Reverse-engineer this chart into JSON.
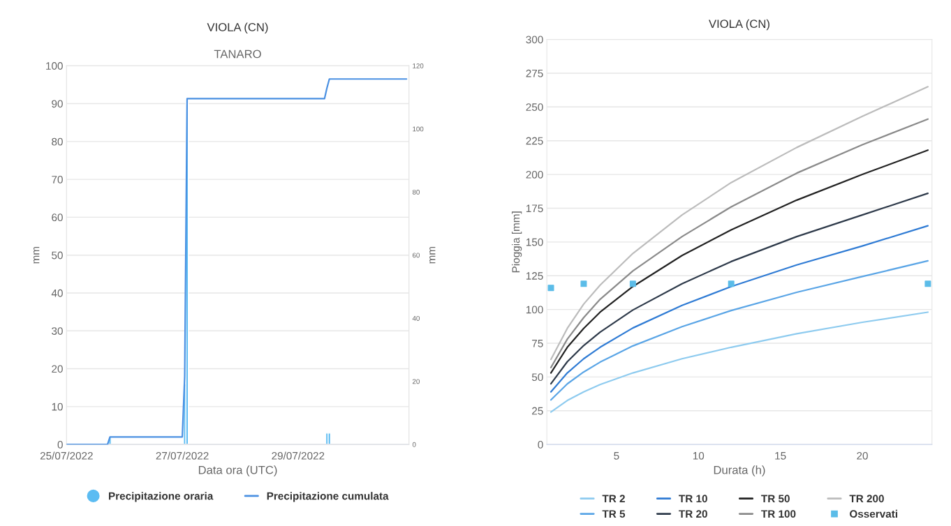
{
  "chart_data": [
    {
      "type": "bar",
      "title": "VIOLA (CN)",
      "subtitle": "TANARO",
      "xlabel": "Data ora (UTC)",
      "ylabel": "mm",
      "y2label": "mm",
      "xlim": [
        "2022-07-25T00:00",
        "2022-07-30T22:00"
      ],
      "xticks": [
        {
          "value": "2022-07-25",
          "label": "25/07/2022"
        },
        {
          "value": "2022-07-27",
          "label": "27/07/2022"
        },
        {
          "value": "2022-07-29",
          "label": "29/07/2022"
        }
      ],
      "ylim": [
        0,
        100
      ],
      "yticks": [
        0,
        10,
        20,
        30,
        40,
        50,
        60,
        70,
        80,
        90,
        100
      ],
      "y2lim": [
        0,
        120
      ],
      "y2ticks": [
        0,
        20,
        40,
        60,
        80,
        100,
        120
      ],
      "grid": "y",
      "legend": "bottom",
      "series": [
        {
          "name": "Precipitazione oraria",
          "type": "bar",
          "color": "#5cbcf2",
          "x": [
            "2022-07-25T18:00",
            "2022-07-27T01:00",
            "2022-07-27T02:00",
            "2022-07-29T12:00",
            "2022-07-29T13:00"
          ],
          "values": [
            2,
            16,
            91,
            3,
            3
          ]
        },
        {
          "name": "Precipitazione cumulata",
          "type": "line",
          "axis": "y2",
          "color": "#4a90e2",
          "x": [
            "2022-07-25T00:00",
            "2022-07-25T17:00",
            "2022-07-25T18:00",
            "2022-07-27T00:00",
            "2022-07-27T01:00",
            "2022-07-27T02:00",
            "2022-07-29T11:00",
            "2022-07-29T12:00",
            "2022-07-29T13:00",
            "2022-07-30T21:00"
          ],
          "values": [
            0,
            0,
            2.4,
            2.4,
            21.6,
            109.6,
            109.6,
            113,
            115.8,
            115.8
          ]
        }
      ]
    },
    {
      "type": "line",
      "title": "VIOLA (CN)",
      "xlabel": "Durata (h)",
      "ylabel": "Pioggia [mm]",
      "xlim": [
        0.75,
        24.25
      ],
      "xticks": [
        5,
        10,
        15,
        20
      ],
      "ylim": [
        0,
        300
      ],
      "yticks": [
        0,
        25,
        50,
        75,
        100,
        125,
        150,
        175,
        200,
        225,
        250,
        275,
        300
      ],
      "grid": "y",
      "legend": "bottom",
      "marker": "none",
      "line_style": "solid",
      "series": [
        {
          "name": "TR 2",
          "color": "#8ecbef",
          "x": [
            1,
            2,
            3,
            4,
            6,
            9,
            12,
            16,
            20,
            24
          ],
          "values": [
            24,
            32.6,
            39,
            44.4,
            53,
            63.5,
            72,
            82,
            90.5,
            98
          ]
        },
        {
          "name": "TR 5",
          "color": "#5aa5e6",
          "x": [
            1,
            2,
            3,
            4,
            6,
            9,
            12,
            16,
            20,
            24
          ],
          "values": [
            33,
            44.9,
            53.7,
            61,
            73,
            87.3,
            99.2,
            112.7,
            124.4,
            136
          ]
        },
        {
          "name": "TR 10",
          "color": "#2f7bd4",
          "x": [
            1,
            2,
            3,
            4,
            6,
            9,
            12,
            16,
            20,
            24
          ],
          "values": [
            39,
            53,
            63.5,
            72,
            86.3,
            103,
            117,
            133,
            147,
            162
          ]
        },
        {
          "name": "TR 20",
          "color": "#2e3a4a",
          "x": [
            1,
            2,
            3,
            4,
            6,
            9,
            12,
            16,
            20,
            24
          ],
          "values": [
            45,
            61.3,
            73.3,
            83.2,
            99.6,
            119,
            135.5,
            154,
            170,
            186
          ]
        },
        {
          "name": "TR 50",
          "color": "#222222",
          "x": [
            1,
            2,
            3,
            4,
            6,
            9,
            12,
            16,
            20,
            24
          ],
          "values": [
            53,
            72,
            86,
            98,
            117,
            140,
            159,
            181,
            200,
            218
          ]
        },
        {
          "name": "TR 100",
          "color": "#8a8a8a",
          "x": [
            1,
            2,
            3,
            4,
            6,
            9,
            12,
            16,
            20,
            24
          ],
          "values": [
            57,
            78,
            94,
            107.5,
            128.5,
            154,
            176,
            201,
            222,
            241
          ]
        },
        {
          "name": "TR 200",
          "color": "#bcbcbc",
          "x": [
            1,
            2,
            3,
            4,
            6,
            9,
            12,
            16,
            20,
            24
          ],
          "values": [
            63,
            86,
            104,
            118,
            141.5,
            170,
            194,
            220,
            243,
            265
          ]
        },
        {
          "name": "Osservati",
          "type": "scatter",
          "marker": "square",
          "color": "#5bbce8",
          "x": [
            1,
            3,
            6,
            12,
            24
          ],
          "values": [
            116,
            119,
            119,
            119,
            119
          ]
        }
      ]
    }
  ]
}
